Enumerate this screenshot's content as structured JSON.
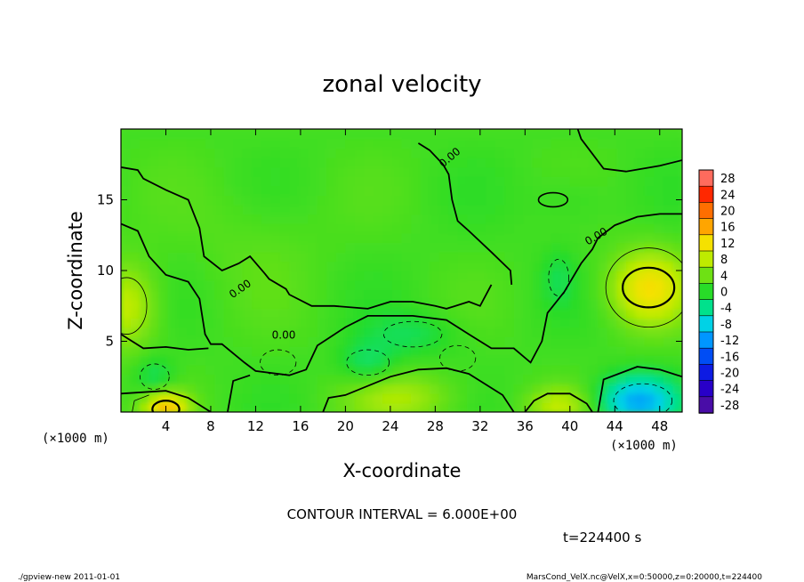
{
  "chart_data": {
    "type": "heatmap",
    "title": "zonal velocity",
    "xlabel": "X-coordinate",
    "ylabel": "Z-coordinate",
    "x_unit_left": "(×1000 m)",
    "x_unit_right": "(×1000 m)",
    "xlim": [
      0,
      50
    ],
    "ylim": [
      0,
      20
    ],
    "x_ticks": [
      4,
      8,
      12,
      16,
      20,
      24,
      28,
      32,
      36,
      40,
      44,
      48
    ],
    "y_ticks": [
      5,
      10,
      15
    ],
    "colorbar": {
      "ticks": [
        28,
        24,
        20,
        16,
        12,
        8,
        4,
        0,
        -4,
        -8,
        -12,
        -16,
        -20,
        -24,
        -28
      ],
      "range": [
        -30,
        30
      ]
    },
    "contour_labels": [
      "0.00",
      "0.00",
      "0.00",
      "0.00"
    ],
    "contour_interval_text": "CONTOUR INTERVAL = 6.000E+00",
    "time_text": "t=224400 s",
    "footer_left": "./gpview-new 2011-01-01",
    "footer_right": "MarsCond_VelX.nc@VelX,x=0:50000,z=0:20000,t=224400",
    "blobs": [
      {
        "x": 47,
        "z": 8.8,
        "amp": 10,
        "rx": 3.5,
        "rz": 2.6
      },
      {
        "x": 0.5,
        "z": 7.5,
        "amp": 7,
        "rx": 2.8,
        "rz": 3.0
      },
      {
        "x": 4,
        "z": 0.3,
        "amp": 12,
        "rx": 2.0,
        "rz": 1.2
      },
      {
        "x": 25,
        "z": 1.0,
        "amp": 5,
        "rx": 5.0,
        "rz": 1.8
      },
      {
        "x": 39,
        "z": 0.5,
        "amp": 6,
        "rx": 2.8,
        "rz": 1.3
      },
      {
        "x": 46,
        "z": 0.8,
        "amp": -12,
        "rx": 3.5,
        "rz": 1.8
      },
      {
        "x": 3,
        "z": 2.5,
        "amp": -4,
        "rx": 1.8,
        "rz": 1.5
      },
      {
        "x": 22,
        "z": 3.5,
        "amp": -4,
        "rx": 2.5,
        "rz": 1.5
      },
      {
        "x": 26,
        "z": 5.5,
        "amp": -3,
        "rx": 4.0,
        "rz": 1.5
      },
      {
        "x": 39,
        "z": 9.5,
        "amp": -2.5,
        "rx": 1.5,
        "rz": 2.0
      },
      {
        "x": 40,
        "z": 15,
        "amp": -1.5,
        "rx": 3.5,
        "rz": 2.0
      },
      {
        "x": 12,
        "z": 12,
        "amp": 1.2,
        "rx": 6.0,
        "rz": 4.0
      }
    ]
  }
}
